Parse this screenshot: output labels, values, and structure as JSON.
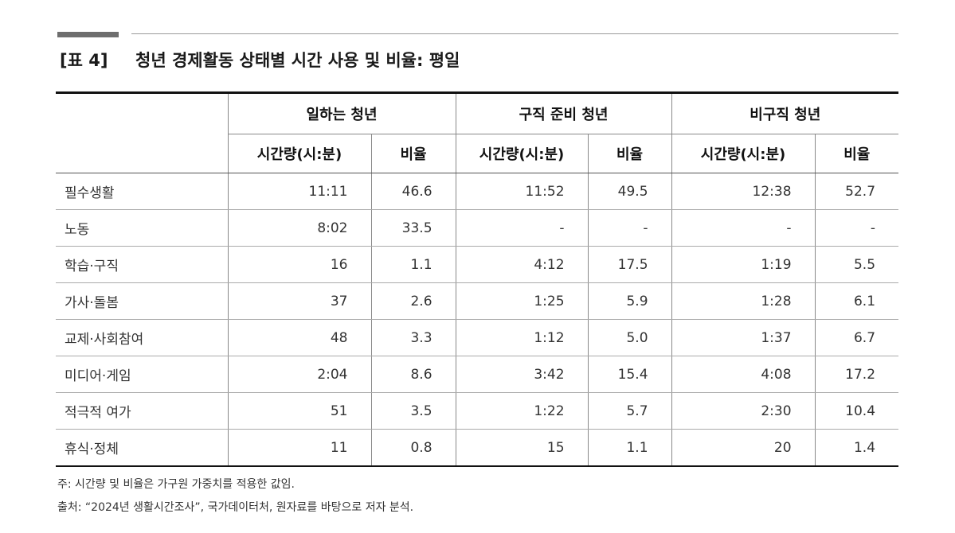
{
  "title": {
    "tag": "[표 4]",
    "text": "청년 경제활동 상태별 시간 사용 및 비율: 평일"
  },
  "table": {
    "groups": [
      "일하는 청년",
      "구직 준비 청년",
      "비구직 청년"
    ],
    "sub_headers": [
      "시간량(시:분)",
      "비율",
      "시간량(시:분)",
      "비율",
      "시간량(시:분)",
      "비율"
    ],
    "rows": [
      {
        "label": "필수생활",
        "values": [
          "11:11",
          "46.6",
          "11:52",
          "49.5",
          "12:38",
          "52.7"
        ]
      },
      {
        "label": "노동",
        "values": [
          "8:02",
          "33.5",
          "-",
          "-",
          "-",
          "-"
        ]
      },
      {
        "label": "학습·구직",
        "values": [
          "16",
          "1.1",
          "4:12",
          "17.5",
          "1:19",
          "5.5"
        ]
      },
      {
        "label": "가사·돌봄",
        "values": [
          "37",
          "2.6",
          "1:25",
          "5.9",
          "1:28",
          "6.1"
        ]
      },
      {
        "label": "교제·사회참여",
        "values": [
          "48",
          "3.3",
          "1:12",
          "5.0",
          "1:37",
          "6.7"
        ]
      },
      {
        "label": "미디어·게임",
        "values": [
          "2:04",
          "8.6",
          "3:42",
          "15.4",
          "4:08",
          "17.2"
        ]
      },
      {
        "label": "적극적 여가",
        "values": [
          "51",
          "3.5",
          "1:22",
          "5.7",
          "2:30",
          "10.4"
        ]
      },
      {
        "label": "휴식·정체",
        "values": [
          "11",
          "0.8",
          "15",
          "1.1",
          "20",
          "1.4"
        ]
      }
    ]
  },
  "notes": {
    "note": "주: 시간량 및 비율은 가구원 가중치를 적용한 값임.",
    "source": "출처: “2024년 생활시간조사”, 국가데이터처, 원자료를 바탕으로 저자 분석."
  }
}
